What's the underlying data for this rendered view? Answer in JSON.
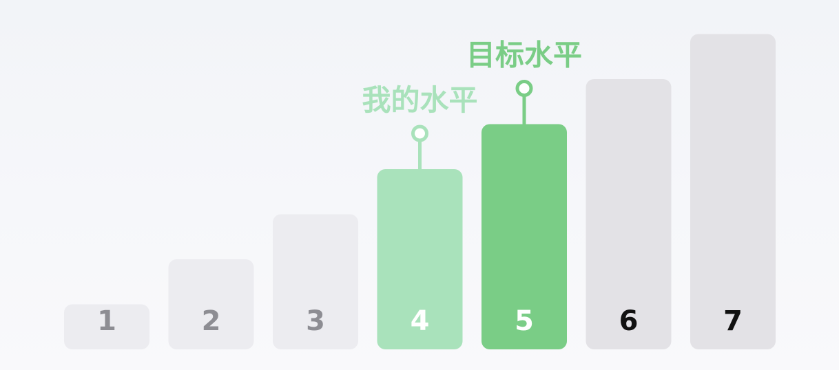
{
  "chart_data": {
    "type": "bar",
    "categories": [
      "1",
      "2",
      "3",
      "4",
      "5",
      "6",
      "7"
    ],
    "values": [
      1,
      2,
      3,
      4,
      5,
      6,
      7
    ],
    "title": "",
    "xlabel": "",
    "ylabel": "",
    "ylim": [
      0,
      7
    ],
    "grid": false,
    "legend": "none",
    "bar_styles": [
      {
        "fill": "#ececf0",
        "label_color": "#8d8d93"
      },
      {
        "fill": "#ececf0",
        "label_color": "#8d8d93"
      },
      {
        "fill": "#ececf0",
        "label_color": "#8d8d93"
      },
      {
        "fill": "#a9e2bb",
        "label_color": "#ffffff"
      },
      {
        "fill": "#7acd86",
        "label_color": "#ffffff"
      },
      {
        "fill": "#e3e2e6",
        "label_color": "#111111"
      },
      {
        "fill": "#e3e2e6",
        "label_color": "#111111"
      }
    ],
    "annotations": [
      {
        "category": "4",
        "text": "我的水平",
        "color": "#a9e2bb"
      },
      {
        "category": "5",
        "text": "目标水平",
        "color": "#7acd86"
      }
    ]
  }
}
